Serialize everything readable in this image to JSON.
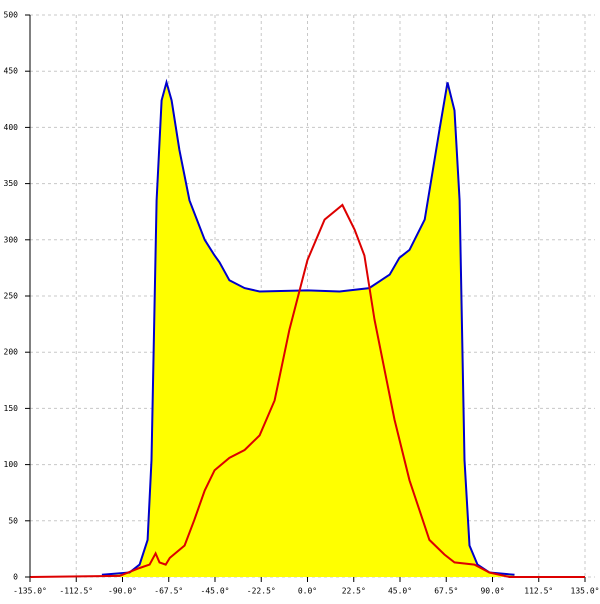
{
  "chart_data": {
    "type": "area",
    "xlim": [
      -135,
      135
    ],
    "ylim": [
      0,
      500
    ],
    "xticks": [
      {
        "value": -135,
        "label": "-135.0°"
      },
      {
        "value": -112.5,
        "label": "-112.5°"
      },
      {
        "value": -90,
        "label": "-90.0°"
      },
      {
        "value": -67.5,
        "label": "-67.5°"
      },
      {
        "value": -45,
        "label": "-45.0°"
      },
      {
        "value": -22.5,
        "label": "-22.5°"
      },
      {
        "value": 0,
        "label": "0.0°"
      },
      {
        "value": 22.5,
        "label": "22.5°"
      },
      {
        "value": 45,
        "label": "45.0°"
      },
      {
        "value": 67.5,
        "label": "67.5°"
      },
      {
        "value": 90,
        "label": "90.0°"
      },
      {
        "value": 112.5,
        "label": "112.5°"
      },
      {
        "value": 135,
        "label": "135.0°"
      }
    ],
    "yticks": [
      0,
      50,
      100,
      150,
      200,
      250,
      300,
      350,
      400,
      450,
      500
    ],
    "grid": true,
    "series": [
      {
        "color": "#0000cc",
        "fill": "#ffff00",
        "x": [
          -100,
          -86.6,
          -81.7,
          -77.8,
          -75.9,
          -73.4,
          -71,
          -68.6,
          -66.1,
          -62.3,
          -57.4,
          -50,
          -45.2,
          -42.8,
          -38,
          -30.6,
          -23.3,
          0,
          15.6,
          30,
          40,
          44.7,
          49.6,
          57,
          64.2,
          68.1,
          71.5,
          74,
          76.4,
          78.8,
          82.7,
          88.5,
          100.7
        ],
        "values": [
          2,
          4,
          11,
          33,
          104,
          335,
          424,
          440,
          424,
          380,
          335,
          300,
          286,
          280,
          264,
          257,
          254,
          255,
          254,
          257,
          269,
          284,
          291,
          318,
          398,
          440,
          415,
          335,
          104,
          28,
          11,
          4,
          2
        ]
      },
      {
        "color": "#dd0000",
        "fill": "none",
        "x": [
          -135,
          -91.4,
          -81.7,
          -76.8,
          -73.9,
          -72,
          -69,
          -67,
          -59.8,
          -55,
          -50,
          -45.2,
          -38,
          -30.6,
          -23.3,
          -16,
          -8.8,
          0,
          8.3,
          17,
          22.9,
          27.7,
          32.6,
          42.3,
          49.6,
          59.3,
          66.6,
          71.5,
          81.2,
          88.5,
          98.2,
          135
        ],
        "values": [
          0,
          1,
          8,
          11,
          21,
          13,
          11,
          17,
          28,
          51,
          77,
          95,
          106,
          113,
          126,
          157,
          220,
          282,
          318,
          331,
          309,
          286,
          229,
          140,
          86,
          33,
          20,
          13,
          11,
          4,
          0,
          0
        ]
      }
    ]
  }
}
